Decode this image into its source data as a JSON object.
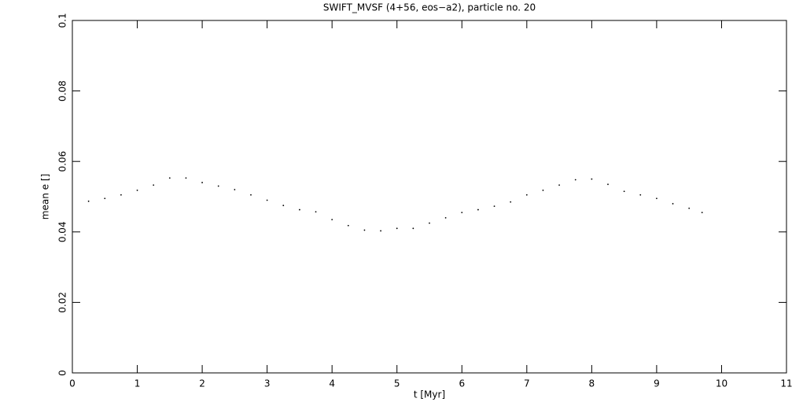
{
  "chart_data": {
    "type": "scatter",
    "title": "SWIFT_MVSF (4+56, eos−a2), particle no. 20",
    "x_label": "t [Myr]",
    "y_label": "mean e []",
    "x": [
      0.25,
      0.5,
      0.75,
      1.0,
      1.25,
      1.5,
      1.75,
      2.0,
      2.25,
      2.5,
      2.75,
      3.0,
      3.25,
      3.5,
      3.75,
      4.0,
      4.25,
      4.5,
      4.75,
      5.0,
      5.25,
      5.5,
      5.75,
      6.0,
      6.25,
      6.5,
      6.75,
      7.0,
      7.25,
      7.5,
      7.75,
      8.0,
      8.25,
      8.5,
      8.75,
      9.0,
      9.25,
      9.5,
      9.7
    ],
    "values": [
      0.0487,
      0.0495,
      0.0505,
      0.0518,
      0.0533,
      0.0553,
      0.0553,
      0.054,
      0.053,
      0.052,
      0.0505,
      0.049,
      0.0475,
      0.0463,
      0.0457,
      0.0435,
      0.0418,
      0.0405,
      0.0403,
      0.041,
      0.041,
      0.0425,
      0.044,
      0.0455,
      0.0463,
      0.0473,
      0.0485,
      0.0505,
      0.0518,
      0.0533,
      0.0548,
      0.055,
      0.0535,
      0.0515,
      0.0505,
      0.0495,
      0.048,
      0.0467,
      0.0455
    ],
    "color": "#000000",
    "xlim": [
      0,
      11
    ],
    "xticks": [
      0,
      1,
      2,
      3,
      4,
      5,
      6,
      7,
      8,
      9,
      10,
      11
    ],
    "ylim": [
      0,
      0.1
    ],
    "yticks": [
      0,
      0.02,
      0.04,
      0.06,
      0.08,
      0.1
    ]
  }
}
